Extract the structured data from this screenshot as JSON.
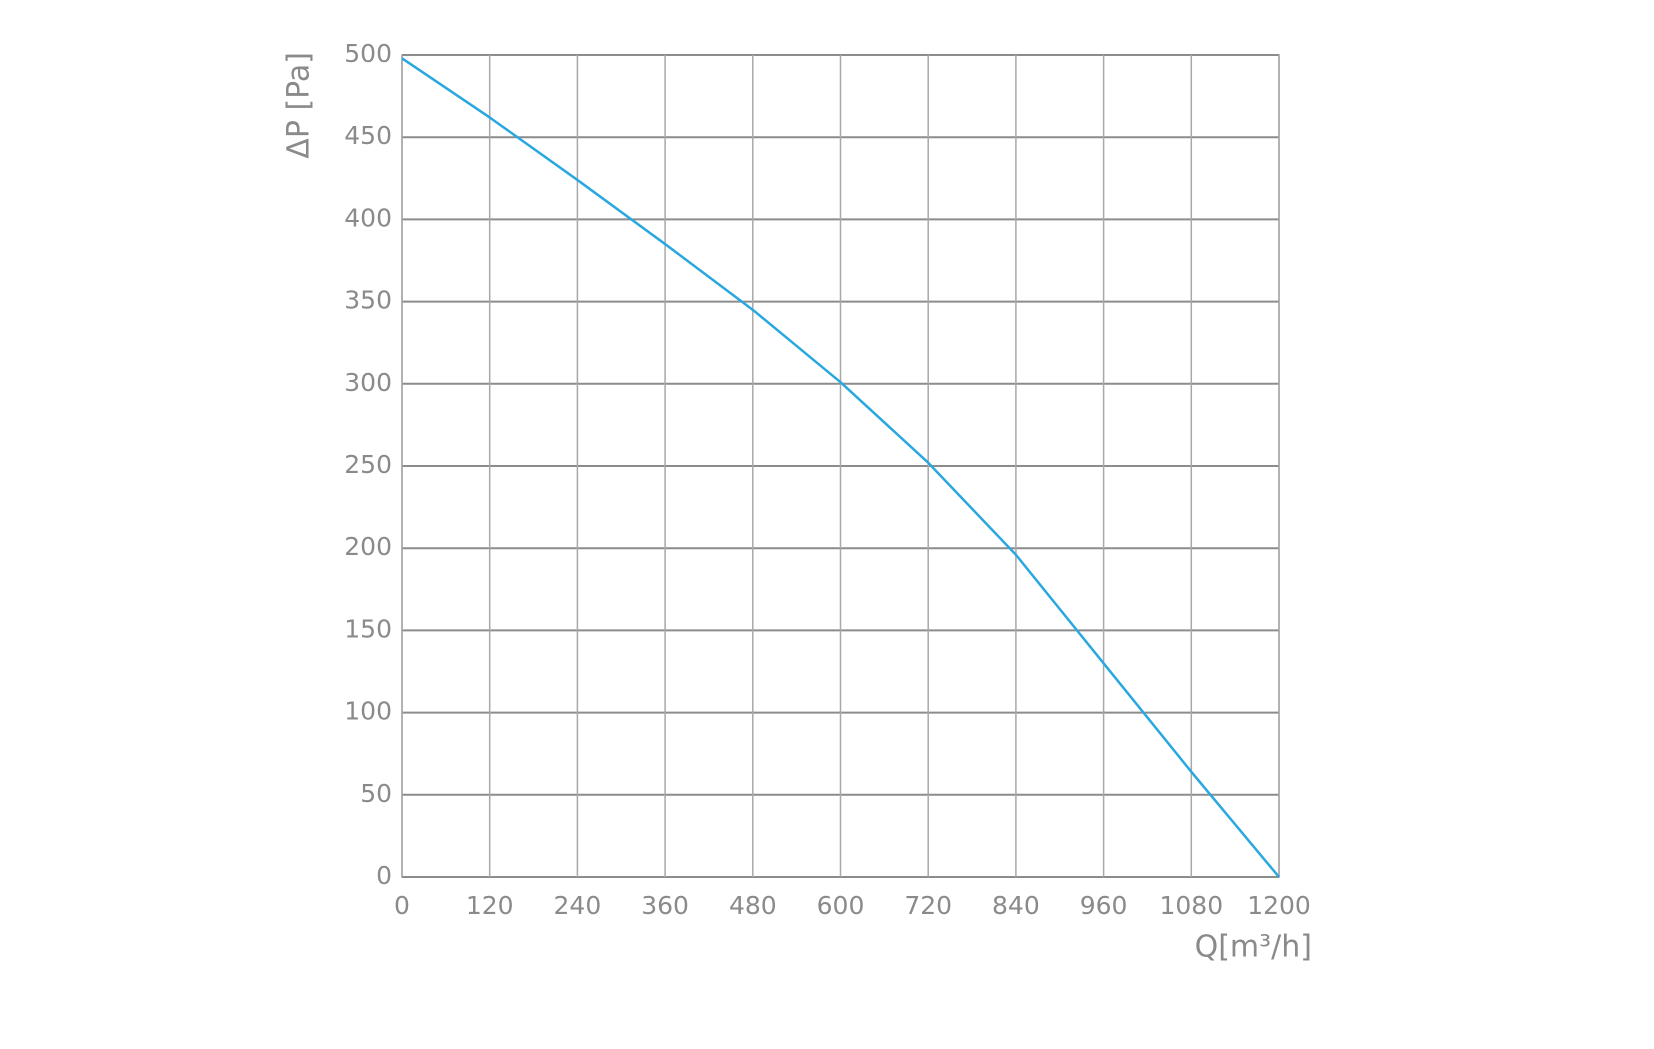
{
  "chart_data": {
    "type": "line",
    "x_label": "Q[m³/h]",
    "y_label": "ΔP [Pa]",
    "x": [
      0,
      120,
      240,
      360,
      480,
      600,
      720,
      840,
      960,
      1080,
      1200
    ],
    "series": [
      {
        "color": "#29a8e0",
        "values": [
          498,
          462,
          424,
          385,
          345,
          301,
          252,
          196,
          130,
          64,
          0
        ]
      }
    ],
    "xlim": [
      0,
      1200
    ],
    "xticks": [
      0,
      120,
      240,
      360,
      480,
      600,
      720,
      840,
      960,
      1080,
      1200
    ],
    "ylim": [
      0,
      500
    ],
    "yticks": [
      0,
      50,
      100,
      150,
      200,
      250,
      300,
      350,
      400,
      450,
      500
    ],
    "grid": true
  }
}
